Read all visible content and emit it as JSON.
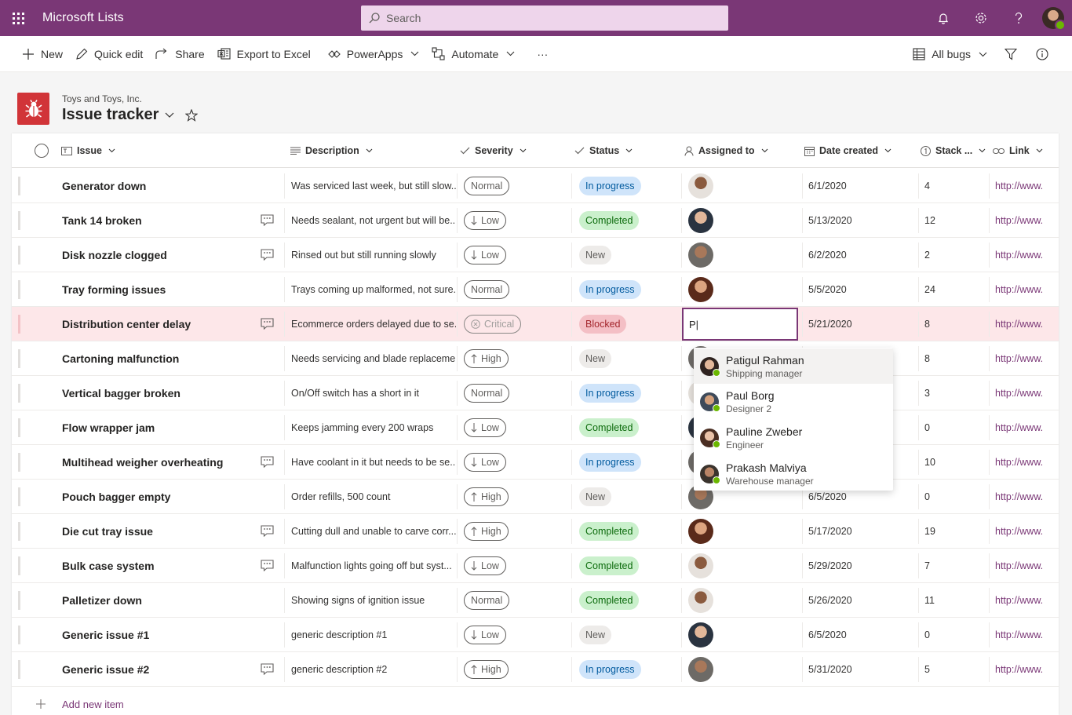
{
  "app": {
    "title": "Microsoft Lists",
    "search_placeholder": "Search"
  },
  "commands": {
    "new": "New",
    "quick_edit": "Quick edit",
    "share": "Share",
    "export": "Export to Excel",
    "powerapps": "PowerApps",
    "automate": "Automate",
    "more": "···",
    "view": "All bugs"
  },
  "list": {
    "org": "Toys and Toys, Inc.",
    "title": "Issue tracker"
  },
  "columns": {
    "issue": "Issue",
    "description": "Description",
    "severity": "Severity",
    "status": "Status",
    "assigned": "Assigned to",
    "date": "Date created",
    "stack": "Stack ...",
    "link": "Link"
  },
  "colors": {
    "brand": "#7a3776",
    "accent_red": "#d13438"
  },
  "rows": [
    {
      "issue": "Generator down",
      "comment": false,
      "description": "Was serviced last week, but still slow...",
      "severity": "Normal",
      "status": "In progress",
      "date": "6/1/2020",
      "stack": "4",
      "link": "http://www."
    },
    {
      "issue": "Tank 14 broken",
      "comment": true,
      "description": "Needs sealant, not urgent but will be...",
      "severity": "Low",
      "status": "Completed",
      "date": "5/13/2020",
      "stack": "12",
      "link": "http://www."
    },
    {
      "issue": "Disk nozzle clogged",
      "comment": true,
      "description": "Rinsed out but still running slowly",
      "severity": "Low",
      "status": "New",
      "date": "6/2/2020",
      "stack": "2",
      "link": "http://www."
    },
    {
      "issue": "Tray forming issues",
      "comment": false,
      "description": "Trays coming up malformed, not sure...",
      "severity": "Normal",
      "status": "In progress",
      "date": "5/5/2020",
      "stack": "24",
      "link": "http://www."
    },
    {
      "issue": "Distribution center delay",
      "comment": true,
      "description": "Ecommerce orders delayed due to se...",
      "severity": "Critical",
      "status": "Blocked",
      "date": "5/21/2020",
      "stack": "8",
      "link": "http://www."
    },
    {
      "issue": "Cartoning malfunction",
      "comment": false,
      "description": "Needs servicing and blade replaceme...",
      "severity": "High",
      "status": "New",
      "date": "",
      "stack": "8",
      "link": "http://www."
    },
    {
      "issue": "Vertical bagger broken",
      "comment": false,
      "description": "On/Off switch has a short in it",
      "severity": "Normal",
      "status": "In progress",
      "date": "",
      "stack": "3",
      "link": "http://www."
    },
    {
      "issue": "Flow wrapper jam",
      "comment": false,
      "description": "Keeps jamming every 200 wraps",
      "severity": "Low",
      "status": "Completed",
      "date": "",
      "stack": "0",
      "link": "http://www."
    },
    {
      "issue": "Multihead weigher overheating",
      "comment": true,
      "description": "Have coolant in it but needs to be se...",
      "severity": "Low",
      "status": "In progress",
      "date": "",
      "stack": "10",
      "link": "http://www."
    },
    {
      "issue": "Pouch bagger empty",
      "comment": false,
      "description": "Order refills, 500 count",
      "severity": "High",
      "status": "New",
      "date": "6/5/2020",
      "stack": "0",
      "link": "http://www."
    },
    {
      "issue": "Die cut tray issue",
      "comment": true,
      "description": "Cutting dull and unable to carve corr...",
      "severity": "High",
      "status": "Completed",
      "date": "5/17/2020",
      "stack": "19",
      "link": "http://www."
    },
    {
      "issue": "Bulk case system",
      "comment": true,
      "description": "Malfunction lights going off but syst...",
      "severity": "Low",
      "status": "Completed",
      "date": "5/29/2020",
      "stack": "7",
      "link": "http://www."
    },
    {
      "issue": "Palletizer down",
      "comment": false,
      "description": "Showing signs of ignition issue",
      "severity": "Normal",
      "status": "Completed",
      "date": "5/26/2020",
      "stack": "11",
      "link": "http://www."
    },
    {
      "issue": "Generic issue #1",
      "comment": false,
      "description": "generic description #1",
      "severity": "Low",
      "status": "New",
      "date": "6/5/2020",
      "stack": "0",
      "link": "http://www."
    },
    {
      "issue": "Generic issue #2",
      "comment": true,
      "description": "generic description #2",
      "severity": "High",
      "status": "In progress",
      "date": "5/31/2020",
      "stack": "5",
      "link": "http://www."
    }
  ],
  "editing": {
    "value": "P|"
  },
  "people_suggestions": [
    {
      "name": "Patigul Rahman",
      "role": "Shipping manager"
    },
    {
      "name": "Paul Borg",
      "role": "Designer 2"
    },
    {
      "name": "Pauline Zweber",
      "role": "Engineer"
    },
    {
      "name": "Prakash Malviya",
      "role": "Warehouse manager"
    }
  ],
  "add_new": "Add new item"
}
